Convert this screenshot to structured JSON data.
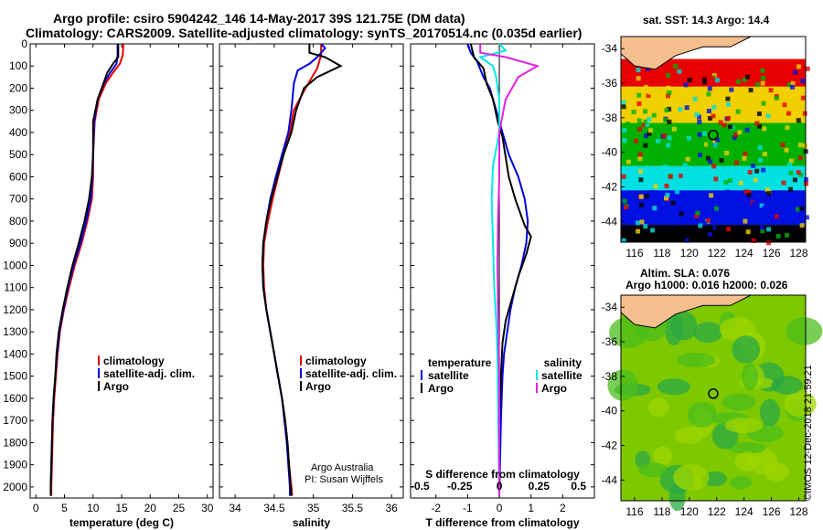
{
  "header": {
    "title_line1": "Argo profile: csiro 5904242_146 14-May-2017 39S 121.75E (DM data)",
    "title_line2": "Climatology: CARS2009. Satellite-adjusted climatology: synTS_20170514.nc (0.035d earlier)"
  },
  "colors": {
    "climatology": "#e00000",
    "satellite": "#0000dd",
    "argo": "#000000",
    "argo_salinity_diff": "#e020e0",
    "satellite_salinity_diff": "#00e8e8"
  },
  "chart_data": [
    {
      "type": "line",
      "panel": "temperature",
      "xlabel": "temperature (deg C)",
      "ylabel": "",
      "xlim": [
        -1,
        31
      ],
      "ylim": [
        2050,
        0
      ],
      "xticks": [
        "0",
        "5",
        "10",
        "15",
        "20",
        "25",
        "30"
      ],
      "yticks": [
        "0",
        "100",
        "200",
        "300",
        "400",
        "500",
        "600",
        "700",
        "800",
        "900",
        "1000",
        "1100",
        "1200",
        "1300",
        "1400",
        "1500",
        "1600",
        "1700",
        "1800",
        "1900",
        "2000"
      ],
      "legend": [
        "climatology",
        "satellite-adj. clim.",
        "Argo"
      ],
      "series": [
        {
          "name": "climatology",
          "points": [
            [
              15.3,
              0
            ],
            [
              15.2,
              50
            ],
            [
              14.7,
              90
            ],
            [
              13.5,
              130
            ],
            [
              12.2,
              180
            ],
            [
              11,
              250
            ],
            [
              10.3,
              350
            ],
            [
              10,
              500
            ],
            [
              10,
              600
            ],
            [
              9.8,
              700
            ],
            [
              9,
              800
            ],
            [
              8,
              900
            ],
            [
              6.8,
              1000
            ],
            [
              5.8,
              1100
            ],
            [
              4.9,
              1200
            ],
            [
              4.2,
              1300
            ],
            [
              3.8,
              1400
            ],
            [
              3.5,
              1500
            ],
            [
              3.2,
              1600
            ],
            [
              3,
              1700
            ],
            [
              2.9,
              1800
            ],
            [
              2.8,
              1900
            ],
            [
              2.7,
              2000
            ],
            [
              2.7,
              2040
            ]
          ]
        },
        {
          "name": "satellite-adj. clim.",
          "points": [
            [
              14.3,
              0
            ],
            [
              14.3,
              50
            ],
            [
              14.1,
              90
            ],
            [
              13,
              130
            ],
            [
              11.9,
              180
            ],
            [
              10.8,
              250
            ],
            [
              10.2,
              350
            ],
            [
              10,
              500
            ],
            [
              9.9,
              600
            ],
            [
              9.6,
              700
            ],
            [
              8.8,
              800
            ],
            [
              7.8,
              900
            ],
            [
              6.6,
              1000
            ],
            [
              5.6,
              1100
            ],
            [
              4.8,
              1200
            ],
            [
              4.1,
              1300
            ],
            [
              3.7,
              1400
            ],
            [
              3.4,
              1500
            ],
            [
              3.1,
              1600
            ],
            [
              2.9,
              1700
            ],
            [
              2.8,
              1800
            ],
            [
              2.7,
              1900
            ],
            [
              2.6,
              2000
            ],
            [
              2.6,
              2040
            ]
          ]
        },
        {
          "name": "Argo",
          "points": [
            [
              14.4,
              0
            ],
            [
              14.4,
              60
            ],
            [
              13.5,
              90
            ],
            [
              12.5,
              130
            ],
            [
              11.8,
              180
            ],
            [
              10.8,
              250
            ],
            [
              10,
              350
            ],
            [
              10,
              500
            ],
            [
              9.8,
              600
            ],
            [
              9.3,
              700
            ],
            [
              8.5,
              800
            ],
            [
              7.5,
              900
            ],
            [
              6.4,
              1000
            ],
            [
              5.5,
              1100
            ],
            [
              4.7,
              1200
            ],
            [
              4,
              1300
            ],
            [
              3.6,
              1400
            ],
            [
              3.4,
              1500
            ],
            [
              3.1,
              1600
            ],
            [
              2.9,
              1700
            ],
            [
              2.8,
              1800
            ],
            [
              2.7,
              1900
            ],
            [
              2.6,
              2000
            ],
            [
              2.6,
              2040
            ]
          ]
        }
      ]
    },
    {
      "type": "line",
      "panel": "salinity",
      "xlabel": "salinity",
      "ylabel": "",
      "xlim": [
        33.8,
        36.15
      ],
      "ylim": [
        2050,
        0
      ],
      "xticks": [
        "34",
        "34.5",
        "35",
        "35.5",
        "36"
      ],
      "legend": [
        "climatology",
        "satellite-adj. clim.",
        "Argo"
      ],
      "series": [
        {
          "name": "climatology",
          "points": [
            [
              35.1,
              0
            ],
            [
              35.1,
              50
            ],
            [
              35.05,
              110
            ],
            [
              34.9,
              200
            ],
            [
              34.75,
              300
            ],
            [
              34.7,
              400
            ],
            [
              34.62,
              500
            ],
            [
              34.55,
              600
            ],
            [
              34.48,
              700
            ],
            [
              34.42,
              800
            ],
            [
              34.37,
              900
            ],
            [
              34.36,
              1000
            ],
            [
              34.37,
              1100
            ],
            [
              34.4,
              1200
            ],
            [
              34.45,
              1300
            ],
            [
              34.5,
              1400
            ],
            [
              34.55,
              1500
            ],
            [
              34.6,
              1600
            ],
            [
              34.64,
              1700
            ],
            [
              34.67,
              1800
            ],
            [
              34.69,
              1900
            ],
            [
              34.72,
              2000
            ],
            [
              34.73,
              2040
            ]
          ]
        },
        {
          "name": "satellite-adj. clim.",
          "points": [
            [
              35.1,
              0
            ],
            [
              35.15,
              20
            ],
            [
              35.05,
              60
            ],
            [
              34.95,
              90
            ],
            [
              34.8,
              120
            ],
            [
              34.75,
              180
            ],
            [
              34.72,
              300
            ],
            [
              34.68,
              400
            ],
            [
              34.6,
              500
            ],
            [
              34.52,
              600
            ],
            [
              34.45,
              700
            ],
            [
              34.4,
              800
            ],
            [
              34.36,
              900
            ],
            [
              34.35,
              1000
            ],
            [
              34.36,
              1100
            ],
            [
              34.4,
              1200
            ],
            [
              34.45,
              1300
            ],
            [
              34.5,
              1400
            ],
            [
              34.55,
              1500
            ],
            [
              34.6,
              1600
            ],
            [
              34.63,
              1700
            ],
            [
              34.66,
              1800
            ],
            [
              34.68,
              1900
            ],
            [
              34.7,
              2000
            ],
            [
              34.7,
              2040
            ]
          ]
        },
        {
          "name": "Argo",
          "points": [
            [
              34.95,
              0
            ],
            [
              34.95,
              40
            ],
            [
              35.15,
              60
            ],
            [
              35.35,
              100
            ],
            [
              35.05,
              150
            ],
            [
              34.88,
              200
            ],
            [
              34.78,
              300
            ],
            [
              34.72,
              400
            ],
            [
              34.62,
              500
            ],
            [
              34.54,
              600
            ],
            [
              34.46,
              700
            ],
            [
              34.4,
              800
            ],
            [
              34.36,
              900
            ],
            [
              34.35,
              1000
            ],
            [
              34.36,
              1100
            ],
            [
              34.4,
              1200
            ],
            [
              34.45,
              1300
            ],
            [
              34.5,
              1400
            ],
            [
              34.55,
              1500
            ],
            [
              34.6,
              1600
            ],
            [
              34.64,
              1700
            ],
            [
              34.67,
              1800
            ],
            [
              34.69,
              1900
            ],
            [
              34.71,
              2000
            ],
            [
              34.72,
              2040
            ]
          ]
        }
      ]
    },
    {
      "type": "line",
      "panel": "difference",
      "xlabel": "T difference from climatology",
      "xlabel2": "S difference from climatology",
      "xlim": [
        -2.8,
        3.0
      ],
      "ylim": [
        2050,
        0
      ],
      "xticks": [
        "-2",
        "-1",
        "0",
        "1",
        "2"
      ],
      "xticks2": [
        "-0.5",
        "-0.25",
        "0",
        "0.25",
        "0.5"
      ],
      "legend_left_title": "temperature",
      "legend_right_title": "salinity",
      "legend_left": [
        "satellite",
        "Argo"
      ],
      "legend_right": [
        "satellite",
        "Argo"
      ],
      "series": [
        {
          "name": "satellite",
          "quantity": "temperature",
          "points": [
            [
              -1,
              0
            ],
            [
              -0.9,
              40
            ],
            [
              -0.7,
              80
            ],
            [
              -0.5,
              150
            ],
            [
              -0.3,
              200
            ],
            [
              -0.1,
              300
            ],
            [
              0.1,
              400
            ],
            [
              0.3,
              500
            ],
            [
              0.6,
              600
            ],
            [
              0.8,
              700
            ],
            [
              0.9,
              800
            ],
            [
              0.85,
              900
            ],
            [
              0.7,
              1000
            ],
            [
              0.5,
              1100
            ],
            [
              0.35,
              1200
            ],
            [
              0.25,
              1300
            ],
            [
              0.15,
              1400
            ],
            [
              0.1,
              1500
            ],
            [
              0.05,
              1700
            ],
            [
              0,
              2040
            ]
          ]
        },
        {
          "name": "Argo",
          "quantity": "temperature",
          "points": [
            [
              -0.9,
              0
            ],
            [
              -0.8,
              60
            ],
            [
              -0.5,
              110
            ],
            [
              -0.4,
              180
            ],
            [
              -0.2,
              250
            ],
            [
              -0.05,
              350
            ],
            [
              0.1,
              420
            ],
            [
              0.3,
              600
            ],
            [
              0.5,
              700
            ],
            [
              0.8,
              820
            ],
            [
              1.0,
              870
            ],
            [
              0.85,
              950
            ],
            [
              0.6,
              1050
            ],
            [
              0.4,
              1150
            ],
            [
              0.2,
              1250
            ],
            [
              0.1,
              1350
            ],
            [
              0.05,
              1500
            ],
            [
              0,
              1700
            ],
            [
              0,
              2040
            ]
          ]
        },
        {
          "name": "satellite",
          "quantity": "salinity",
          "points": [
            [
              0,
              0
            ],
            [
              0.1,
              30
            ],
            [
              -0.3,
              60
            ],
            [
              -0.1,
              100
            ],
            [
              -0.05,
              150
            ],
            [
              0,
              250
            ],
            [
              0,
              400
            ],
            [
              -0.1,
              550
            ],
            [
              -0.12,
              700
            ],
            [
              -0.1,
              900
            ],
            [
              -0.08,
              1100
            ],
            [
              -0.05,
              1250
            ],
            [
              -0.03,
              1400
            ],
            [
              -0.02,
              1600
            ],
            [
              0,
              2040
            ]
          ]
        },
        {
          "name": "Argo",
          "quantity": "salinity",
          "points": [
            [
              -0.3,
              0
            ],
            [
              -0.3,
              40
            ],
            [
              0.1,
              60
            ],
            [
              0.6,
              100
            ],
            [
              0.3,
              150
            ],
            [
              0.1,
              250
            ],
            [
              0,
              400
            ],
            [
              0,
              600
            ],
            [
              -0.02,
              800
            ],
            [
              -0.03,
              1000
            ],
            [
              -0.02,
              1200
            ],
            [
              0,
              1500
            ],
            [
              0,
              2040
            ]
          ]
        }
      ]
    }
  ],
  "credits": {
    "line1": "Argo Australia",
    "line2": "PI: Susan Wijffels"
  },
  "map_top": {
    "label": "sat. SST: 14.3 Argo: 14.4",
    "yticks": [
      "-34",
      "-36",
      "-38",
      "-40",
      "-42",
      "-44"
    ],
    "xticks": [
      "116",
      "118",
      "120",
      "122",
      "124",
      "126",
      "128"
    ],
    "xlim": [
      115,
      128.5
    ],
    "ylim": [
      -45.2,
      -33.3
    ],
    "float_lon": 121.75,
    "float_lat": -39,
    "bands": [
      {
        "color": "#e60000",
        "from": -34.6,
        "to": -36.2
      },
      {
        "color": "#f0d000",
        "from": -36.2,
        "to": -38.3
      },
      {
        "color": "#00b000",
        "from": -38.3,
        "to": -40.8
      },
      {
        "color": "#00e0e0",
        "from": -40.8,
        "to": -42.2
      },
      {
        "color": "#0010e0",
        "from": -42.2,
        "to": -44.2
      },
      {
        "color": "#000000",
        "from": -44.2,
        "to": -45.2
      }
    ],
    "land_color": "#f6bf8e"
  },
  "map_bottom": {
    "label_line1": "Altim. SLA: 0.076",
    "label_line2": "Argo h1000: 0.016 h2000: 0.026",
    "yticks": [
      "-34",
      "-36",
      "-38",
      "-40",
      "-42",
      "-44"
    ],
    "xticks": [
      "116",
      "118",
      "120",
      "122",
      "124",
      "126",
      "128"
    ],
    "xlim": [
      115,
      128.5
    ],
    "ylim": [
      -45.2,
      -33.3
    ],
    "float_lon": 121.75,
    "float_lat": -39,
    "land_color": "#f6bf8e",
    "field_colors": [
      "#7ec800",
      "#4cbd1c",
      "#9ed600",
      "#2aa845"
    ]
  },
  "timestamp": "©IMOS 12-Dec-2018 21:59:21"
}
